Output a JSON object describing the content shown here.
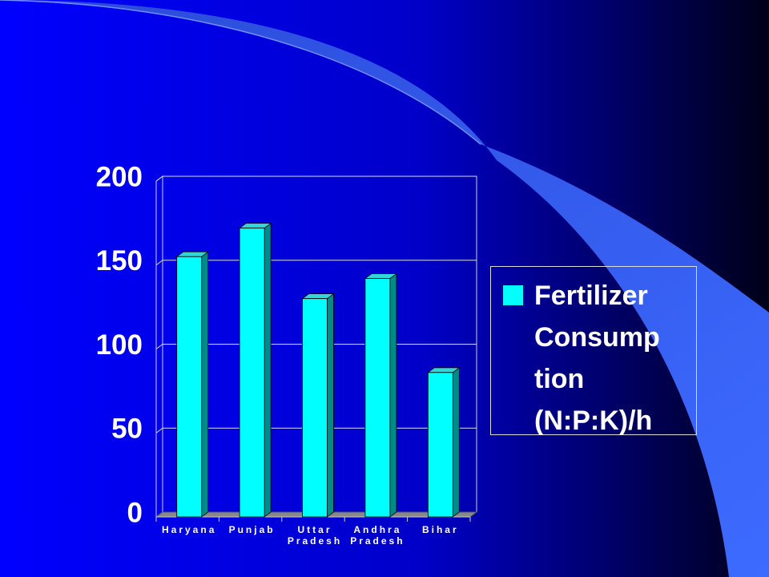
{
  "chart_data": {
    "type": "bar",
    "categories": [
      "Haryana",
      "Punjab",
      "Uttar Pradesh",
      "Andhra Pradesh",
      "Bihar"
    ],
    "series": [
      {
        "name": "Fertilizer Consumption (N:P:K)/h",
        "color": "#00ffff",
        "values": [
          155,
          172,
          130,
          142,
          86
        ]
      }
    ],
    "ylim": [
      0,
      200
    ],
    "yticks": [
      0,
      50,
      100,
      150,
      200
    ],
    "grid": true,
    "legend": "right"
  }
}
